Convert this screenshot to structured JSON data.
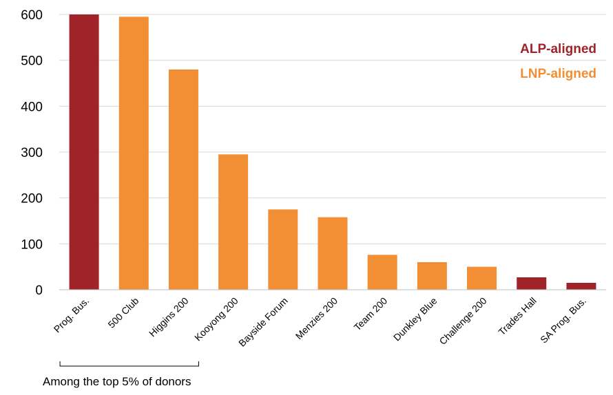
{
  "chart_data": {
    "type": "bar",
    "title": "",
    "xlabel": "",
    "ylabel": "",
    "ylim": [
      0,
      600
    ],
    "yticks": [
      0,
      100,
      200,
      300,
      400,
      500,
      600
    ],
    "grid": true,
    "categories": [
      "Prog. Bus.",
      "500 Club",
      "Higgins 200",
      "Kooyong 200",
      "Bayside Forum",
      "Menzies 200",
      "Team 200",
      "Dunkley Blue",
      "Challenge 200",
      "Trades Hall",
      "SA Prog. Bus."
    ],
    "values": [
      600,
      595,
      480,
      295,
      175,
      158,
      76,
      60,
      50,
      27,
      15
    ],
    "groups": [
      "ALP-aligned",
      "LNP-aligned",
      "LNP-aligned",
      "LNP-aligned",
      "LNP-aligned",
      "LNP-aligned",
      "LNP-aligned",
      "LNP-aligned",
      "LNP-aligned",
      "ALP-aligned",
      "ALP-aligned"
    ],
    "legend": [
      {
        "label": "ALP-aligned",
        "color": "#A0232A"
      },
      {
        "label": "LNP-aligned",
        "color": "#F28E33"
      }
    ],
    "legend_position": "top-right",
    "annotation": {
      "text": "Among the top 5% of donors",
      "first_category": "Prog. Bus.",
      "last_category": "Higgins 200"
    }
  }
}
